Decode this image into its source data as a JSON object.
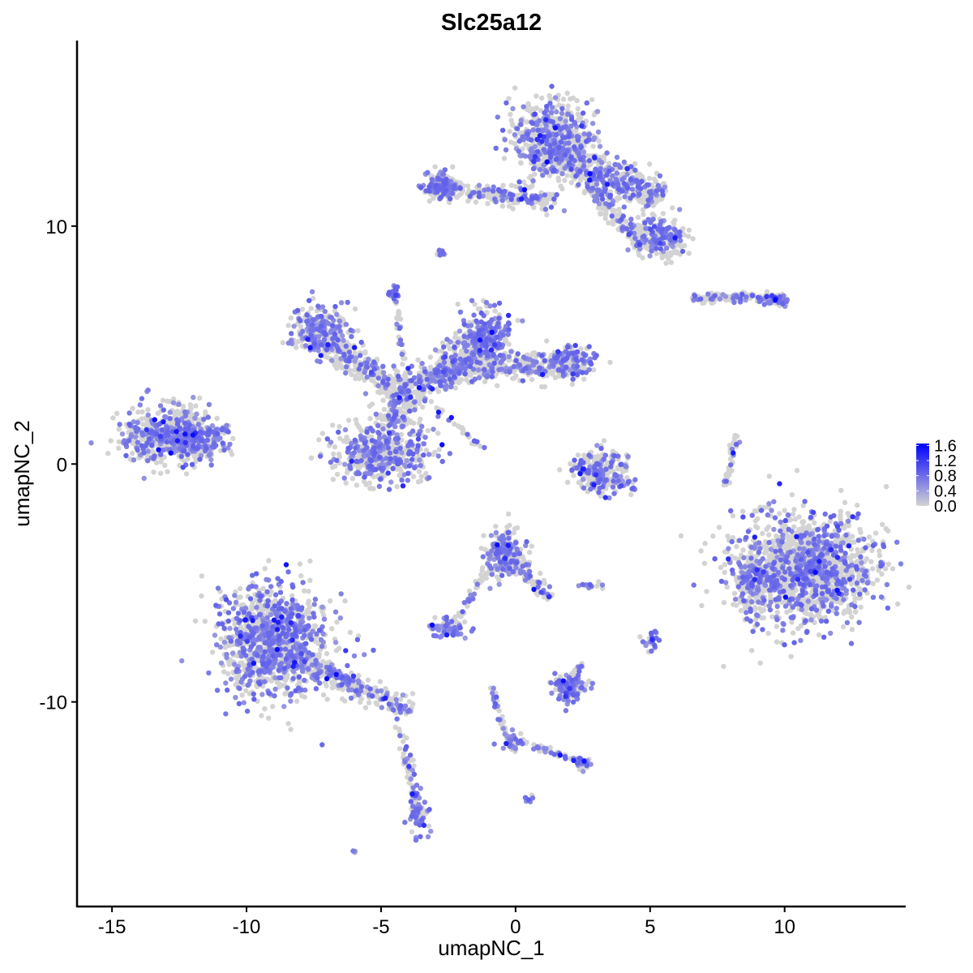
{
  "chart_data": {
    "type": "scatter",
    "title": "Slc25a12",
    "xlabel": "umapNC_1",
    "ylabel": "umapNC_2",
    "xlim": [
      -16.3,
      14.5
    ],
    "ylim": [
      -18.6,
      17.8
    ],
    "xticks": [
      -15,
      -10,
      -5,
      0,
      5,
      10
    ],
    "yticks": [
      -10,
      0,
      10
    ],
    "grid": false,
    "legend": {
      "position": "right",
      "ticks": [
        "1.6",
        "1.2",
        "0.8",
        "0.4",
        "0.0"
      ],
      "range": [
        0,
        1.65
      ]
    },
    "color_low": "#d3d3d3",
    "color_high": "#0000ff",
    "clusters": [
      {
        "kind": "ellipse",
        "cx": -12.9,
        "cy": 1.2,
        "sx": 1.2,
        "sy": 0.8,
        "n": 600,
        "p": 0.45
      },
      {
        "kind": "ellipse",
        "cx": -11.6,
        "cy": 0.9,
        "sx": 0.6,
        "sy": 0.4,
        "n": 80,
        "p": 0.4
      },
      {
        "kind": "segment",
        "x1": -12.0,
        "y1": 1.2,
        "x2": -10.6,
        "y2": 1.5,
        "w": 0.25,
        "n": 40,
        "p": 0.4
      },
      {
        "kind": "ellipse",
        "cx": -9.0,
        "cy": -7.5,
        "sx": 1.3,
        "sy": 1.6,
        "n": 1000,
        "p": 0.45
      },
      {
        "kind": "segment",
        "x1": -8.5,
        "y1": -8.0,
        "x2": -3.9,
        "y2": -10.4,
        "w": 0.5,
        "n": 300,
        "p": 0.4
      },
      {
        "kind": "segment",
        "x1": -4.3,
        "y1": -11.0,
        "x2": -3.6,
        "y2": -14.8,
        "w": 0.2,
        "n": 60,
        "p": 0.4
      },
      {
        "kind": "ellipse",
        "cx": -3.6,
        "cy": -14.7,
        "sx": 0.25,
        "sy": 0.6,
        "n": 60,
        "p": 0.6
      },
      {
        "kind": "ellipse",
        "cx": -6.0,
        "cy": -16.3,
        "sx": 0.1,
        "sy": 0.05,
        "n": 4,
        "p": 0.8
      },
      {
        "kind": "ellipse",
        "cx": -7.3,
        "cy": 5.6,
        "sx": 0.7,
        "sy": 0.7,
        "n": 250,
        "p": 0.5
      },
      {
        "kind": "segment",
        "x1": -7.0,
        "y1": 5.0,
        "x2": -4.0,
        "y2": 3.0,
        "w": 0.6,
        "n": 250,
        "p": 0.3
      },
      {
        "kind": "ellipse",
        "cx": -5.0,
        "cy": 0.4,
        "sx": 1.2,
        "sy": 0.8,
        "n": 500,
        "p": 0.4
      },
      {
        "kind": "segment",
        "x1": -5.0,
        "y1": 1.5,
        "x2": -3.0,
        "y2": 4.0,
        "w": 0.6,
        "n": 250,
        "p": 0.3
      },
      {
        "kind": "segment",
        "x1": -3.0,
        "y1": 3.5,
        "x2": -1.0,
        "y2": 5.5,
        "w": 0.7,
        "n": 300,
        "p": 0.35
      },
      {
        "kind": "ellipse",
        "cx": -1.0,
        "cy": 5.5,
        "sx": 0.6,
        "sy": 0.8,
        "n": 200,
        "p": 0.45
      },
      {
        "kind": "segment",
        "x1": -3.0,
        "y1": 4.0,
        "x2": 2.3,
        "y2": 4.2,
        "w": 0.6,
        "n": 400,
        "p": 0.35
      },
      {
        "kind": "ellipse",
        "cx": 2.2,
        "cy": 4.3,
        "sx": 0.5,
        "sy": 0.5,
        "n": 120,
        "p": 0.5
      },
      {
        "kind": "segment",
        "x1": -3.5,
        "y1": 3.0,
        "x2": -1.2,
        "y2": 0.6,
        "w": 0.1,
        "n": 30,
        "p": 0.2
      },
      {
        "kind": "segment",
        "x1": -4.5,
        "y1": 7.3,
        "x2": -4.0,
        "y2": 3.0,
        "w": 0.1,
        "n": 40,
        "p": 0.2
      },
      {
        "kind": "ellipse",
        "cx": -4.5,
        "cy": 7.3,
        "sx": 0.15,
        "sy": 0.2,
        "n": 20,
        "p": 0.9
      },
      {
        "kind": "ellipse",
        "cx": 1.4,
        "cy": 13.7,
        "sx": 1.0,
        "sy": 1.1,
        "n": 600,
        "p": 0.4
      },
      {
        "kind": "segment",
        "x1": 1.5,
        "y1": 13.0,
        "x2": 5.5,
        "y2": 11.2,
        "w": 0.7,
        "n": 400,
        "p": 0.35
      },
      {
        "kind": "ellipse",
        "cx": 5.5,
        "cy": 9.6,
        "sx": 0.6,
        "sy": 0.6,
        "n": 200,
        "p": 0.4
      },
      {
        "kind": "segment",
        "x1": -3.2,
        "y1": 11.7,
        "x2": 1.5,
        "y2": 11.0,
        "w": 0.4,
        "n": 250,
        "p": 0.3
      },
      {
        "kind": "ellipse",
        "cx": -2.7,
        "cy": 11.7,
        "sx": 0.4,
        "sy": 0.4,
        "n": 120,
        "p": 0.5
      },
      {
        "kind": "segment",
        "x1": 2.5,
        "y1": 12.0,
        "x2": 5.0,
        "y2": 9.0,
        "w": 0.4,
        "n": 200,
        "p": 0.3
      },
      {
        "kind": "ellipse",
        "cx": -2.8,
        "cy": 8.9,
        "sx": 0.15,
        "sy": 0.1,
        "n": 15,
        "p": 0.6
      },
      {
        "kind": "segment",
        "x1": 6.5,
        "y1": 7.0,
        "x2": 10.0,
        "y2": 7.0,
        "w": 0.2,
        "n": 120,
        "p": 0.3
      },
      {
        "kind": "ellipse",
        "cx": 9.7,
        "cy": 6.9,
        "sx": 0.3,
        "sy": 0.2,
        "n": 40,
        "p": 0.7
      },
      {
        "kind": "ellipse",
        "cx": 10.7,
        "cy": -4.4,
        "sx": 1.7,
        "sy": 1.5,
        "n": 1500,
        "p": 0.3
      },
      {
        "kind": "ellipse",
        "cx": 8.8,
        "cy": -5.0,
        "sx": 0.4,
        "sy": 0.8,
        "n": 150,
        "p": 0.4
      },
      {
        "kind": "segment",
        "x1": 8.2,
        "y1": 1.2,
        "x2": 7.8,
        "y2": -1.0,
        "w": 0.15,
        "n": 40,
        "p": 0.3
      },
      {
        "kind": "ellipse",
        "cx": 3.1,
        "cy": -0.3,
        "sx": 0.6,
        "sy": 0.6,
        "n": 200,
        "p": 0.35
      },
      {
        "kind": "segment",
        "x1": 2.0,
        "y1": 0.0,
        "x2": 4.5,
        "y2": -1.0,
        "w": 0.3,
        "n": 60,
        "p": 0.6
      },
      {
        "kind": "ellipse",
        "cx": -0.4,
        "cy": -3.8,
        "sx": 0.5,
        "sy": 0.6,
        "n": 250,
        "p": 0.45
      },
      {
        "kind": "segment",
        "x1": -0.3,
        "y1": -4.0,
        "x2": 1.3,
        "y2": -5.6,
        "w": 0.3,
        "n": 80,
        "p": 0.3
      },
      {
        "kind": "segment",
        "x1": -1.0,
        "y1": -4.3,
        "x2": -2.3,
        "y2": -6.8,
        "w": 0.15,
        "n": 40,
        "p": 0.3
      },
      {
        "kind": "ellipse",
        "cx": -2.5,
        "cy": -6.9,
        "sx": 0.4,
        "sy": 0.25,
        "n": 80,
        "p": 0.5
      },
      {
        "kind": "ellipse",
        "cx": 2.0,
        "cy": -9.4,
        "sx": 0.4,
        "sy": 0.35,
        "n": 150,
        "p": 0.5
      },
      {
        "kind": "segment",
        "x1": 2.0,
        "y1": -9.0,
        "x2": 2.5,
        "y2": -8.4,
        "w": 0.1,
        "n": 20,
        "p": 0.3
      },
      {
        "kind": "segment",
        "x1": -0.9,
        "y1": -9.4,
        "x2": -0.3,
        "y2": -11.5,
        "w": 0.12,
        "n": 40,
        "p": 0.3
      },
      {
        "kind": "segment",
        "x1": -0.3,
        "y1": -11.5,
        "x2": 2.4,
        "y2": -12.5,
        "w": 0.12,
        "n": 60,
        "p": 0.3
      },
      {
        "kind": "ellipse",
        "cx": -0.2,
        "cy": -11.7,
        "sx": 0.2,
        "sy": 0.3,
        "n": 30,
        "p": 0.7
      },
      {
        "kind": "ellipse",
        "cx": 2.5,
        "cy": -12.6,
        "sx": 0.2,
        "sy": 0.15,
        "n": 25,
        "p": 0.7
      },
      {
        "kind": "ellipse",
        "cx": 5.1,
        "cy": -7.4,
        "sx": 0.2,
        "sy": 0.3,
        "n": 25,
        "p": 0.7
      },
      {
        "kind": "ellipse",
        "cx": 2.7,
        "cy": -5.1,
        "sx": 0.3,
        "sy": 0.1,
        "n": 15,
        "p": 0.4
      },
      {
        "kind": "ellipse",
        "cx": 0.55,
        "cy": -14.0,
        "sx": 0.1,
        "sy": 0.1,
        "n": 6,
        "p": 0.9
      }
    ]
  }
}
